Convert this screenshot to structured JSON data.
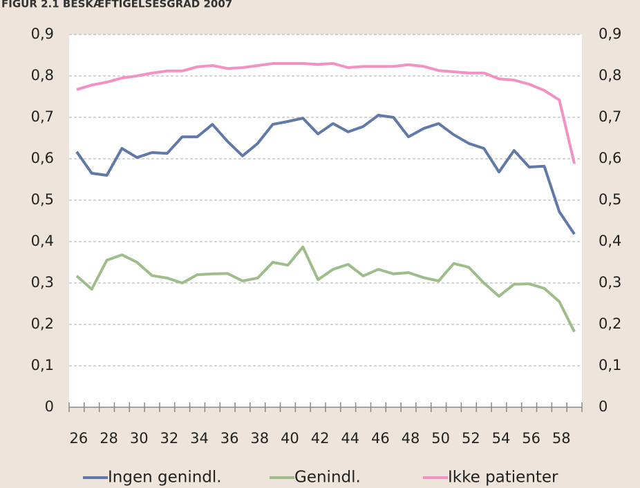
{
  "chart_data": {
    "type": "line",
    "title": "FIGUR 2.1 BESKÆFTIGELSESGRAD 2007",
    "categories": [
      "26",
      null,
      "28",
      null,
      "30",
      null,
      "32",
      null,
      "34",
      null,
      "36",
      null,
      "38",
      null,
      "40",
      null,
      "42",
      null,
      "44",
      null,
      "46",
      null,
      "48",
      null,
      "50",
      null,
      "52",
      null,
      "54",
      null,
      "56",
      null,
      "58",
      null
    ],
    "series": [
      {
        "name": "Ingen genindl.",
        "color": "#6079a8",
        "values": [
          0.617,
          0.565,
          0.56,
          0.625,
          0.603,
          0.615,
          0.613,
          0.653,
          0.653,
          0.683,
          0.642,
          0.607,
          0.637,
          0.683,
          0.69,
          0.698,
          0.66,
          0.685,
          0.665,
          0.678,
          0.705,
          0.7,
          0.653,
          0.673,
          0.685,
          0.658,
          0.637,
          0.625,
          0.568,
          0.62,
          0.58,
          0.582,
          0.472,
          0.418
        ]
      },
      {
        "name": "Genindl.",
        "color": "#9dbd8b",
        "values": [
          0.317,
          0.285,
          0.355,
          0.368,
          0.35,
          0.318,
          0.312,
          0.3,
          0.32,
          0.322,
          0.323,
          0.305,
          0.312,
          0.35,
          0.343,
          0.387,
          0.308,
          0.333,
          0.345,
          0.317,
          0.333,
          0.322,
          0.325,
          0.313,
          0.305,
          0.347,
          0.338,
          0.3,
          0.268,
          0.297,
          0.298,
          0.287,
          0.255,
          0.182
        ]
      },
      {
        "name": "Ikke patienter",
        "color": "#f291c2",
        "values": [
          0.767,
          0.778,
          0.785,
          0.795,
          0.8,
          0.807,
          0.812,
          0.812,
          0.822,
          0.825,
          0.818,
          0.82,
          0.825,
          0.83,
          0.83,
          0.83,
          0.828,
          0.83,
          0.82,
          0.823,
          0.823,
          0.823,
          0.827,
          0.823,
          0.813,
          0.81,
          0.807,
          0.807,
          0.793,
          0.79,
          0.78,
          0.765,
          0.742,
          0.588
        ]
      }
    ],
    "ylim": [
      0,
      0.9
    ],
    "yticks": [
      0,
      {
        "value": 0.1,
        "label": "0,1"
      },
      {
        "value": 0.2,
        "label": "0,2"
      },
      {
        "value": 0.3,
        "label": "0,3"
      },
      {
        "value": 0.4,
        "label": "0,4"
      },
      {
        "value": 0.5,
        "label": "0,5"
      },
      {
        "value": 0.6,
        "label": "0,6"
      },
      {
        "value": 0.7,
        "label": "0,7"
      },
      {
        "value": 0.8,
        "label": "0,8"
      },
      {
        "value": 0.9,
        "label": "0,9"
      }
    ],
    "y2lim": [
      0,
      0.9
    ],
    "y2ticks": [
      0,
      {
        "value": 0.1,
        "label": "0,1"
      },
      {
        "value": 0.2,
        "label": "0,2"
      },
      {
        "value": 0.3,
        "label": "0,3"
      },
      {
        "value": 0.4,
        "label": "0,4"
      },
      {
        "value": 0.5,
        "label": "0,5"
      },
      {
        "value": 0.6,
        "label": "0,6"
      },
      {
        "value": 0.7,
        "label": "0,7"
      },
      {
        "value": 0.8,
        "label": "0,8"
      },
      {
        "value": 0.9,
        "label": "0,9"
      }
    ],
    "grid": true,
    "legend": "bottom"
  }
}
